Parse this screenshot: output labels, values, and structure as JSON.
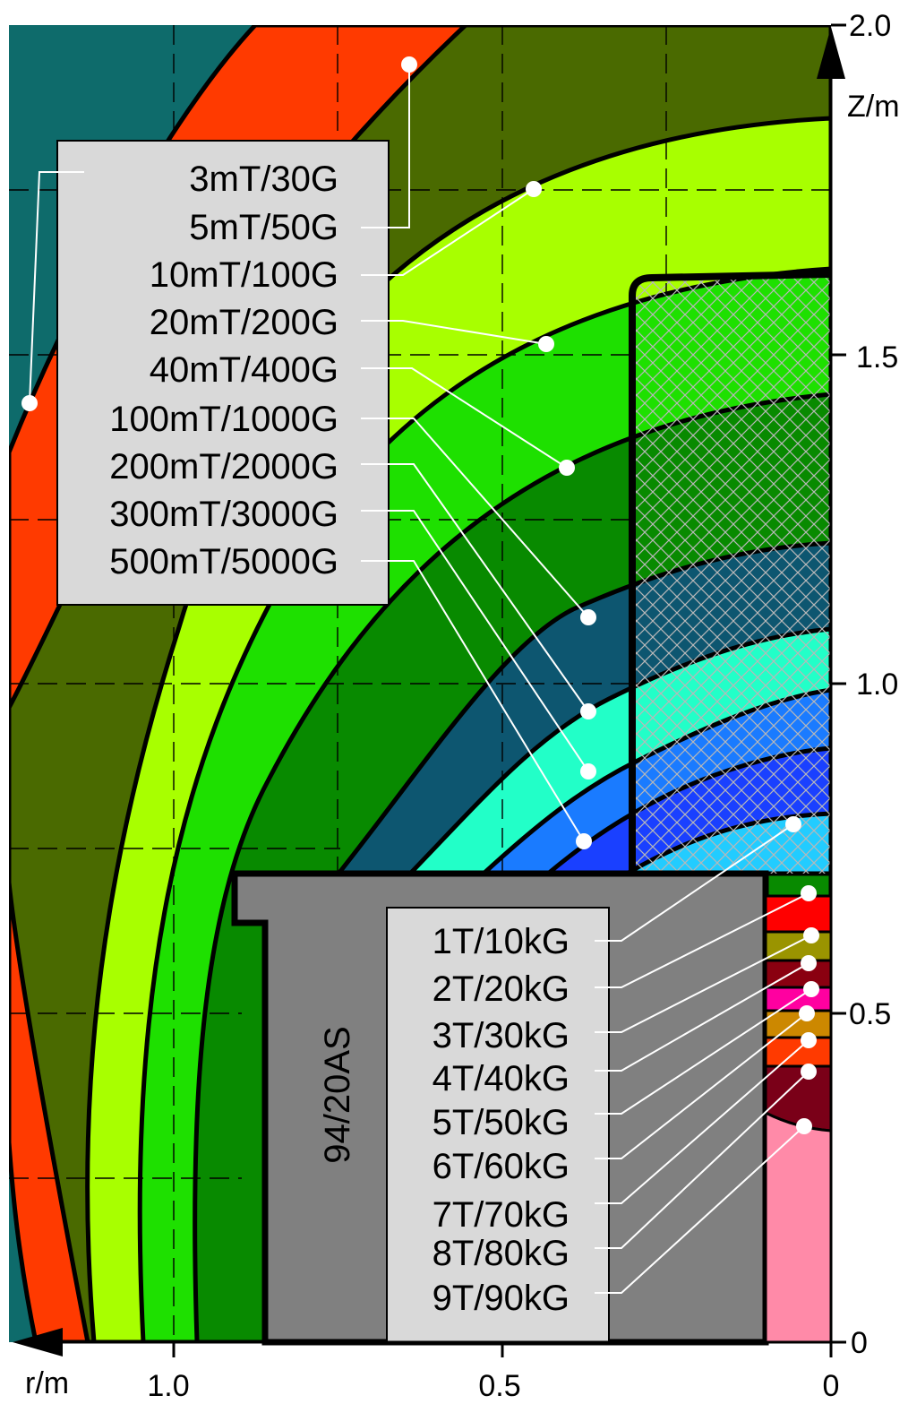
{
  "axes": {
    "z_axis_label": "Z/m",
    "r_axis_label": "r/m",
    "z_ticks": [
      "2.0",
      "1.5",
      "1.0",
      "0.5",
      "0"
    ],
    "r_ticks": [
      "1.0",
      "0.5",
      "0"
    ]
  },
  "magnet_label": "94/20AS",
  "legend_low_field": {
    "items": [
      "3mT/30G",
      "5mT/50G",
      "10mT/100G",
      "20mT/200G",
      "40mT/400G",
      "100mT/1000G",
      "200mT/2000G",
      "300mT/3000G",
      "500mT/5000G"
    ]
  },
  "legend_high_field": {
    "items": [
      "1T/10kG",
      "2T/20kG",
      "3T/30kG",
      "4T/40kG",
      "5T/50kG",
      "6T/60kG",
      "7T/70kG",
      "8T/80kG",
      "9T/90kG"
    ]
  },
  "colors": {
    "teal": "#0e6b6b",
    "orange_red": "#ff3a00",
    "olive": "#4a6a00",
    "yellow_green": "#a8ff00",
    "green": "#1ee000",
    "dark_green": "#088a00",
    "slate_blue": "#0d5670",
    "aqua": "#22ffc8",
    "blue": "#1a7bff",
    "royal_blue": "#1a40ff",
    "pink": "#ff8aa8",
    "gray": "#808080",
    "legend_bg": "#d9d9d9"
  }
}
